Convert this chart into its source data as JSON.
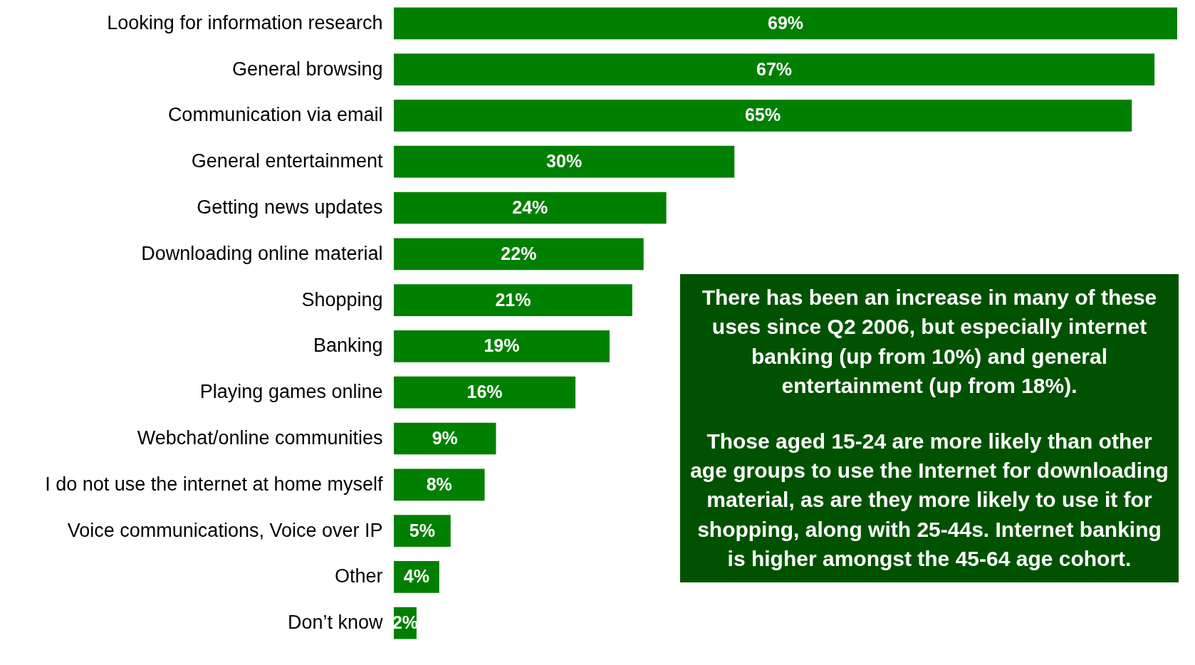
{
  "chart_data": {
    "type": "bar",
    "orientation": "horizontal",
    "color": "#008000",
    "tick_labels": "y",
    "categories": [
      "Looking for information research",
      "General browsing",
      "Communication via email",
      "General entertainment",
      "Getting news updates",
      "Downloading online material",
      "Shopping",
      "Banking",
      "Playing games online",
      "Webchat/online communities",
      "I do not use the internet at home myself",
      "Voice communications, Voice over IP",
      "Other",
      "Don’t know"
    ],
    "values": [
      69,
      67,
      65,
      30,
      24,
      22,
      21,
      19,
      16,
      9,
      8,
      5,
      4,
      2
    ],
    "value_labels": [
      "69%",
      "67%",
      "65%",
      "30%",
      "24%",
      "22%",
      "21%",
      "19%",
      "16%",
      "9%",
      "8%",
      "5%",
      "4%",
      "2%"
    ],
    "annotations": [
      "There has been an increase in many of these uses since Q2 2006, but especially internet banking (up from 10%) and general entertainment (up from 18%).",
      "Those aged 15-24 are more likely than other age groups to use the Internet for downloading material, as are they more likely to use it for shopping, along with 25-44s.  Internet banking is higher amongst the 45-64 age cohort."
    ]
  }
}
